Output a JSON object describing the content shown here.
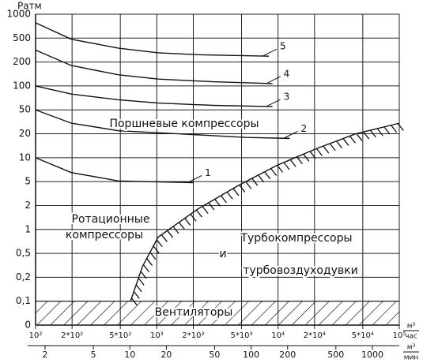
{
  "chart_data": {
    "type": "line",
    "ylabel": "Ратм",
    "xlabel": {
      "numerator": "м³",
      "denominator": "час"
    },
    "x2label": {
      "numerator": "м³",
      "denominator": "мин"
    },
    "xscale": "log",
    "xlim": [
      100,
      100000
    ],
    "xticks": [
      {
        "value": 100,
        "label": "10²"
      },
      {
        "value": 200,
        "label": "2*10²"
      },
      {
        "value": 500,
        "label": "5*10²"
      },
      {
        "value": 1000,
        "label": "10³"
      },
      {
        "value": 2000,
        "label": "2*10³"
      },
      {
        "value": 5000,
        "label": "5*10³"
      },
      {
        "value": 10000,
        "label": "10⁴"
      },
      {
        "value": 20000,
        "label": "2*10⁴"
      },
      {
        "value": 50000,
        "label": "5*10⁴"
      },
      {
        "value": 100000,
        "label": "10⁵"
      }
    ],
    "x2lim": [
      1.67,
      1667
    ],
    "x2ticks": [
      2,
      5,
      10,
      20,
      50,
      100,
      200,
      500,
      1000
    ],
    "ylim": [
      0,
      1000
    ],
    "yticks": [
      0,
      {
        "value": 0.1,
        "label": "0,1"
      },
      {
        "value": 0.2,
        "label": "0,2"
      },
      {
        "value": 0.5,
        "label": "0,5"
      },
      1,
      2,
      5,
      10,
      20,
      50,
      100,
      200,
      500,
      1000
    ],
    "grid": true,
    "color": "#111111",
    "series": [
      {
        "name": "1",
        "x": [
          100,
          197,
          484,
          2020
        ],
        "values": [
          10,
          6.5,
          5.1,
          4.8
        ]
      },
      {
        "name": "2",
        "x": [
          100,
          197,
          484,
          1500,
          5500,
          12500
        ],
        "values": [
          50,
          30,
          22.5,
          20,
          18,
          17.5
        ]
      },
      {
        "name": "3",
        "x": [
          100,
          197,
          484,
          1025,
          2900,
          9000
        ],
        "values": [
          100,
          79,
          67,
          61,
          57,
          55
        ]
      },
      {
        "name": "4",
        "x": [
          100,
          197,
          484,
          1025,
          2900,
          9000
        ],
        "values": [
          316,
          181,
          138,
          122,
          113,
          107
        ]
      },
      {
        "name": "5",
        "x": [
          100,
          197,
          484,
          1025,
          2180,
          8400
        ],
        "values": [
          780,
          480,
          340,
          285,
          265,
          250
        ]
      }
    ],
    "boundary": {
      "x": [
        607,
        760,
        1025,
        2170,
        4600,
        9770,
        20700,
        43700,
        100000
      ],
      "values": [
        0.1,
        0.3,
        0.8,
        1.8,
        4.2,
        8,
        13,
        20,
        30
      ]
    },
    "fan_band": [
      0,
      0.1
    ],
    "annotations": [
      "Поршневые компрессоры",
      "Ротационные",
      "компрессоры",
      "Турбокомпрессоры",
      "и",
      "турбовоздуходувки",
      "Вентиляторы"
    ]
  }
}
